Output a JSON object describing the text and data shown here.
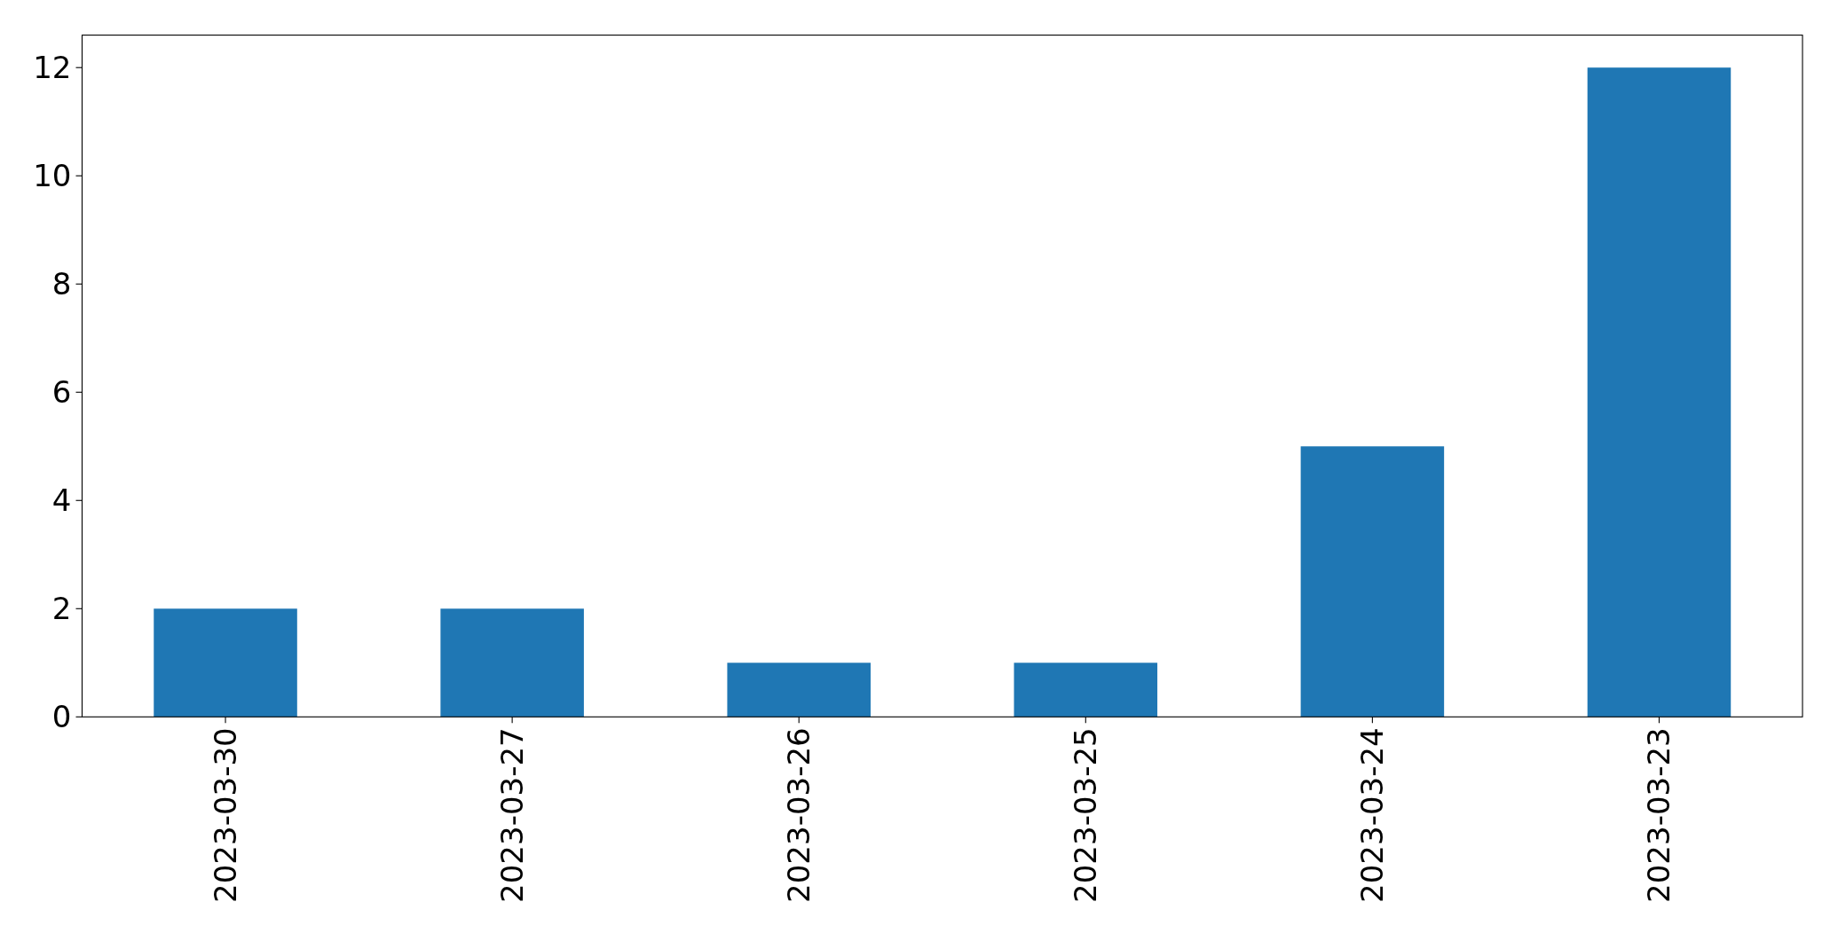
{
  "chart_data": {
    "type": "bar",
    "categories": [
      "2023-03-30",
      "2023-03-27",
      "2023-03-26",
      "2023-03-25",
      "2023-03-24",
      "2023-03-23"
    ],
    "values": [
      2,
      2,
      1,
      1,
      5,
      12
    ],
    "color": "#1f77b4",
    "ylim": [
      0,
      12.6
    ],
    "yticks": [
      0,
      2,
      4,
      6,
      8,
      10,
      12
    ],
    "grid": false
  }
}
